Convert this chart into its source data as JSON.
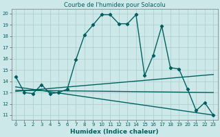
{
  "title": "Courbe de l'humidex pour Solacolu",
  "xlabel": "Humidex (Indice chaleur)",
  "bg_color": "#cce8e8",
  "grid_color": "#aacccc",
  "line_color": "#006060",
  "x_ticks": [
    0,
    1,
    2,
    3,
    4,
    5,
    6,
    7,
    8,
    9,
    10,
    11,
    12,
    13,
    14,
    15,
    16,
    17,
    18,
    19,
    20,
    21,
    22,
    23
  ],
  "y_ticks": [
    11,
    12,
    13,
    14,
    15,
    16,
    17,
    18,
    19,
    20
  ],
  "ylim": [
    10.6,
    20.4
  ],
  "xlim": [
    -0.5,
    23.5
  ],
  "curve1_x": [
    0,
    1,
    2,
    3,
    4,
    5,
    6,
    7,
    8,
    9,
    10,
    11,
    12,
    13,
    14,
    15,
    16,
    17,
    18,
    19,
    20,
    21,
    22,
    23
  ],
  "curve1_y": [
    14.4,
    13.0,
    12.9,
    13.7,
    12.9,
    13.0,
    13.3,
    15.9,
    18.1,
    19.0,
    19.9,
    19.9,
    19.1,
    19.1,
    19.9,
    14.5,
    16.3,
    18.9,
    15.2,
    15.1,
    13.3,
    11.4,
    12.1,
    11.0
  ],
  "curve2_x": [
    0,
    23
  ],
  "curve2_y": [
    13.1,
    14.6
  ],
  "curve3_x": [
    0,
    23
  ],
  "curve3_y": [
    13.5,
    11.0
  ],
  "curve4_x": [
    0,
    23
  ],
  "curve4_y": [
    13.2,
    13.0
  ],
  "marker_size": 2.2,
  "line_width": 1.0,
  "title_fontsize": 6.0,
  "tick_fontsize": 5.0,
  "xlabel_fontsize": 6.5
}
